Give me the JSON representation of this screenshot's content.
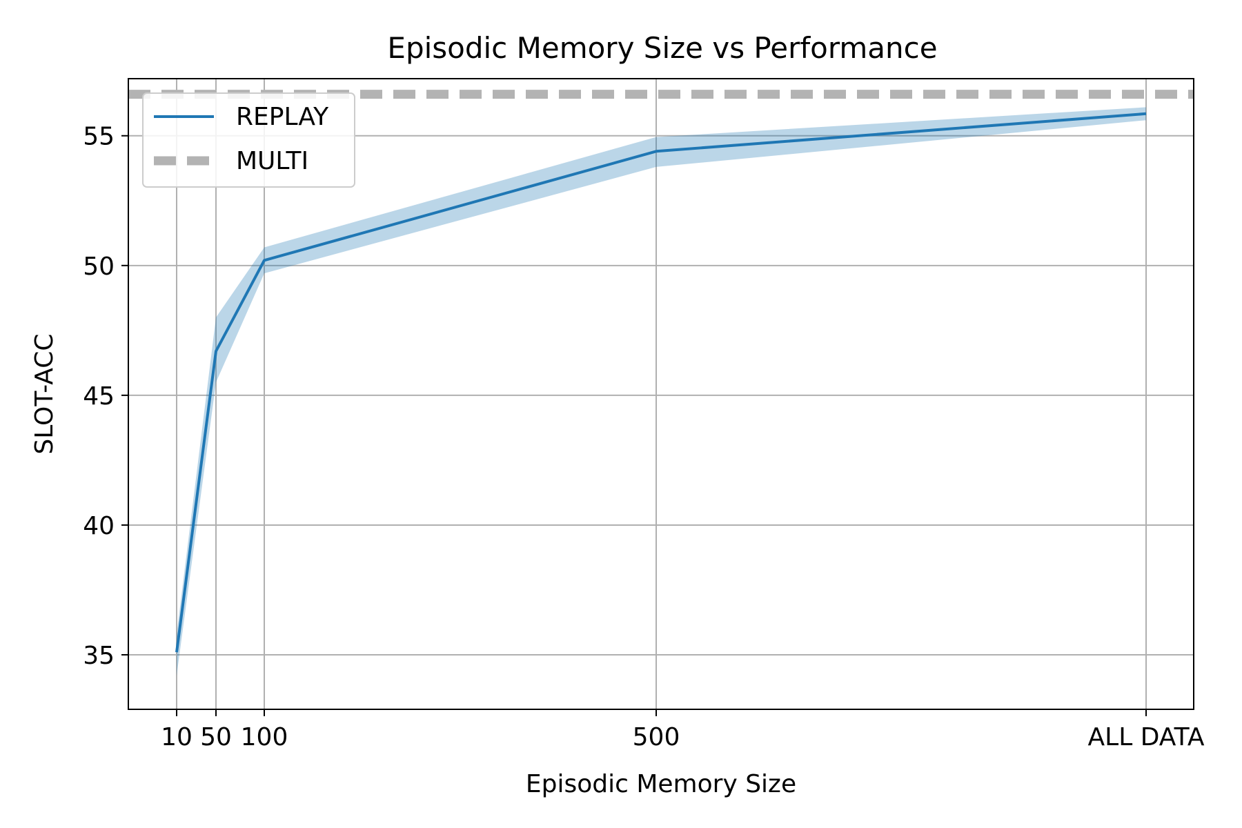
{
  "chart_data": {
    "type": "line",
    "title": "Episodic Memory Size vs Performance",
    "xlabel": "Episodic Memory Size",
    "ylabel": "SLOT-ACC",
    "x_ticks": [
      "10",
      "50",
      "100",
      "500",
      "ALL DATA"
    ],
    "y_ticks": [
      35,
      40,
      45,
      50,
      55
    ],
    "ylim": [
      32.9,
      57.2
    ],
    "grid": true,
    "legend_position": "top-left",
    "series": [
      {
        "name": "REPLAY",
        "style": "solid",
        "color": "#1f77b4",
        "band_color": "#1f77b4",
        "x": [
          "10",
          "50",
          "100",
          "500",
          "ALL DATA"
        ],
        "values": [
          35.1,
          46.7,
          50.2,
          54.4,
          55.85
        ],
        "lower": [
          34.2,
          45.5,
          49.7,
          53.8,
          55.6
        ],
        "upper": [
          35.8,
          48.0,
          50.7,
          54.95,
          56.1
        ]
      },
      {
        "name": "MULTI",
        "style": "dashed",
        "color": "#b3b3b3",
        "value": 56.6
      }
    ]
  }
}
